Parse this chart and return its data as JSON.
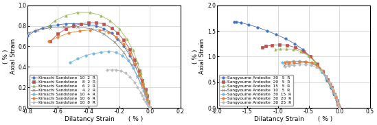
{
  "left": {
    "series": [
      {
        "label": "Kimachi Sandstone  10  2  R",
        "color": "#4472C4",
        "marker": "o",
        "ms": 2.5,
        "dilatancy": [
          0.0,
          -0.01,
          -0.02,
          -0.03,
          -0.05,
          -0.07,
          -0.1,
          -0.13,
          -0.17,
          -0.21,
          -0.25,
          -0.3,
          -0.35,
          -0.4,
          -0.45,
          -0.5,
          -0.55,
          -0.6,
          -0.65,
          -0.7,
          -0.75,
          -0.8,
          -0.84
        ],
        "axial": [
          0.0,
          0.05,
          0.1,
          0.16,
          0.24,
          0.32,
          0.42,
          0.51,
          0.6,
          0.67,
          0.73,
          0.77,
          0.8,
          0.81,
          0.82,
          0.82,
          0.82,
          0.81,
          0.8,
          0.78,
          0.75,
          0.7,
          0.63
        ]
      },
      {
        "label": "Kimachi Sandstone    8  2  R",
        "color": "#C0504D",
        "marker": "s",
        "ms": 2.5,
        "dilatancy": [
          0.0,
          -0.01,
          -0.02,
          -0.03,
          -0.05,
          -0.07,
          -0.1,
          -0.13,
          -0.17,
          -0.21,
          -0.25,
          -0.3,
          -0.35,
          -0.4,
          -0.45,
          -0.5,
          -0.55,
          -0.6,
          -0.65
        ],
        "axial": [
          0.0,
          0.06,
          0.12,
          0.18,
          0.27,
          0.36,
          0.47,
          0.57,
          0.66,
          0.73,
          0.78,
          0.82,
          0.83,
          0.83,
          0.82,
          0.8,
          0.77,
          0.72,
          0.65
        ]
      },
      {
        "label": "Kimachi Sandstone    6  2  R",
        "color": "#9BBB59",
        "marker": "^",
        "ms": 2.5,
        "dilatancy": [
          0.0,
          -0.01,
          -0.02,
          -0.04,
          -0.06,
          -0.08,
          -0.11,
          -0.15,
          -0.2,
          -0.26,
          -0.32,
          -0.39,
          -0.47,
          -0.55,
          -0.62,
          -0.66
        ],
        "axial": [
          0.0,
          0.07,
          0.14,
          0.24,
          0.34,
          0.44,
          0.56,
          0.67,
          0.77,
          0.85,
          0.9,
          0.93,
          0.93,
          0.9,
          0.85,
          0.8
        ]
      },
      {
        "label": "Kimachi Sandstone    4  2  R",
        "color": "#808080",
        "marker": "x",
        "ms": 2.5,
        "dilatancy": [
          0.0,
          -0.01,
          -0.03,
          -0.05,
          -0.08,
          -0.12,
          -0.17,
          -0.23,
          -0.3,
          -0.38,
          -0.47,
          -0.56,
          -0.65,
          -0.73,
          -0.79
        ],
        "axial": [
          0.0,
          0.05,
          0.12,
          0.2,
          0.3,
          0.42,
          0.54,
          0.64,
          0.72,
          0.77,
          0.79,
          0.79,
          0.78,
          0.76,
          0.73
        ]
      },
      {
        "label": "Kimachi Sandstone  10  4  R",
        "color": "#74B9E0",
        "marker": "o",
        "ms": 2.5,
        "dilatancy": [
          0.0,
          -0.01,
          -0.02,
          -0.03,
          -0.04,
          -0.06,
          -0.08,
          -0.11,
          -0.14,
          -0.18,
          -0.22,
          -0.27,
          -0.32,
          -0.37,
          -0.42,
          -0.47,
          -0.52
        ],
        "axial": [
          0.0,
          0.03,
          0.07,
          0.12,
          0.17,
          0.24,
          0.31,
          0.39,
          0.46,
          0.51,
          0.54,
          0.55,
          0.54,
          0.53,
          0.51,
          0.48,
          0.44
        ]
      },
      {
        "label": "Kimachi Sandstone  10  6  R",
        "color": "#ED7D31",
        "marker": "o",
        "ms": 2.5,
        "dilatancy": [
          0.0,
          -0.01,
          -0.02,
          -0.03,
          -0.05,
          -0.07,
          -0.1,
          -0.13,
          -0.17,
          -0.22,
          -0.27,
          -0.33,
          -0.39,
          -0.46,
          -0.53,
          -0.6,
          -0.66
        ],
        "axial": [
          0.0,
          0.04,
          0.09,
          0.15,
          0.23,
          0.32,
          0.43,
          0.53,
          0.62,
          0.69,
          0.74,
          0.76,
          0.76,
          0.75,
          0.73,
          0.69,
          0.65
        ]
      },
      {
        "label": "Kimachi Sandstone  10  8  R",
        "color": "#BBBBBB",
        "marker": "D",
        "ms": 2.0,
        "dilatancy": [
          0.0,
          -0.01,
          -0.02,
          -0.03,
          -0.04,
          -0.05,
          -0.06,
          -0.08,
          -0.1,
          -0.13,
          -0.16,
          -0.19,
          -0.22,
          -0.25,
          -0.28
        ],
        "axial": [
          0.0,
          0.02,
          0.04,
          0.06,
          0.09,
          0.12,
          0.15,
          0.2,
          0.25,
          0.3,
          0.34,
          0.36,
          0.37,
          0.37,
          0.37
        ]
      }
    ],
    "xlim": [
      -0.8,
      0.2
    ],
    "ylim": [
      0.0,
      1.0
    ],
    "xticks": [
      -0.8,
      -0.6,
      -0.4,
      -0.2,
      0.0,
      0.2
    ],
    "yticks": [
      0.0,
      0.2,
      0.4,
      0.6,
      0.8,
      1.0
    ],
    "xlabel": "Dilatancy Strain",
    "xlabel2": "( % )",
    "ylabel": "Axial Strain",
    "ylabel2": "( % )"
  },
  "right": {
    "series": [
      {
        "label": "Sangyoume Andesite  30   5  R",
        "color": "#4472C4",
        "marker": "o",
        "ms": 2.5,
        "dilatancy": [
          0.0,
          -0.02,
          -0.05,
          -0.09,
          -0.14,
          -0.2,
          -0.28,
          -0.37,
          -0.48,
          -0.6,
          -0.73,
          -0.88,
          -1.03,
          -1.18,
          -1.33,
          -1.48,
          -1.6,
          -1.68,
          -1.72
        ],
        "axial": [
          0.0,
          0.07,
          0.16,
          0.27,
          0.39,
          0.54,
          0.7,
          0.86,
          1.01,
          1.14,
          1.25,
          1.35,
          1.43,
          1.5,
          1.57,
          1.62,
          1.66,
          1.68,
          1.68
        ]
      },
      {
        "label": "Sangyoume Andesite  20   5  R",
        "color": "#C0504D",
        "marker": "s",
        "ms": 2.5,
        "dilatancy": [
          0.0,
          -0.02,
          -0.04,
          -0.08,
          -0.13,
          -0.19,
          -0.27,
          -0.36,
          -0.47,
          -0.59,
          -0.72,
          -0.85,
          -0.98,
          -1.1,
          -1.2,
          -1.26
        ],
        "axial": [
          0.0,
          0.07,
          0.15,
          0.27,
          0.4,
          0.55,
          0.71,
          0.86,
          1.0,
          1.1,
          1.18,
          1.22,
          1.23,
          1.22,
          1.2,
          1.18
        ]
      },
      {
        "label": "Sangyoume Andesite  15   5  R",
        "color": "#9BBB59",
        "marker": "^",
        "ms": 2.5,
        "dilatancy": [
          0.0,
          -0.02,
          -0.05,
          -0.09,
          -0.15,
          -0.22,
          -0.3,
          -0.4,
          -0.51,
          -0.63,
          -0.75,
          -0.87,
          -0.97,
          -1.04
        ],
        "axial": [
          0.0,
          0.08,
          0.17,
          0.29,
          0.43,
          0.59,
          0.75,
          0.9,
          1.02,
          1.1,
          1.14,
          1.15,
          1.15,
          1.14
        ]
      },
      {
        "label": "Sangyoume Andesite  10   5  R",
        "color": "#808080",
        "marker": "x",
        "ms": 2.5,
        "dilatancy": [
          0.0,
          -0.01,
          -0.03,
          -0.06,
          -0.1,
          -0.15,
          -0.21,
          -0.28,
          -0.36,
          -0.45,
          -0.55,
          -0.65,
          -0.74,
          -0.83,
          -0.9
        ],
        "axial": [
          0.0,
          0.05,
          0.12,
          0.22,
          0.34,
          0.47,
          0.61,
          0.73,
          0.82,
          0.87,
          0.88,
          0.87,
          0.86,
          0.85,
          0.83
        ]
      },
      {
        "label": "Sangyoume Andesite  30  15  R",
        "color": "#74B9E0",
        "marker": "o",
        "ms": 2.5,
        "dilatancy": [
          0.0,
          -0.01,
          -0.03,
          -0.06,
          -0.1,
          -0.15,
          -0.21,
          -0.28,
          -0.36,
          -0.45,
          -0.55,
          -0.65,
          -0.75,
          -0.85,
          -0.93
        ],
        "axial": [
          0.0,
          0.05,
          0.11,
          0.2,
          0.31,
          0.44,
          0.57,
          0.7,
          0.8,
          0.87,
          0.9,
          0.91,
          0.91,
          0.9,
          0.89
        ]
      },
      {
        "label": "Sangyoume Andesite  30  20  R",
        "color": "#ED7D31",
        "marker": "o",
        "ms": 2.5,
        "dilatancy": [
          0.0,
          -0.01,
          -0.03,
          -0.06,
          -0.1,
          -0.15,
          -0.21,
          -0.28,
          -0.36,
          -0.45,
          -0.55,
          -0.65,
          -0.74,
          -0.82,
          -0.89
        ],
        "axial": [
          0.0,
          0.05,
          0.12,
          0.22,
          0.34,
          0.47,
          0.61,
          0.73,
          0.82,
          0.88,
          0.9,
          0.9,
          0.9,
          0.89,
          0.88
        ]
      },
      {
        "label": "Sangyoume Andesite  30  25  R",
        "color": "#BBBBBB",
        "marker": "D",
        "ms": 2.0,
        "dilatancy": [
          0.0,
          -0.01,
          -0.02,
          -0.04,
          -0.07,
          -0.11,
          -0.16,
          -0.22,
          -0.29,
          -0.37,
          -0.46,
          -0.55,
          -0.65,
          -0.74,
          -0.82,
          -0.89
        ],
        "axial": [
          0.0,
          0.04,
          0.09,
          0.16,
          0.26,
          0.37,
          0.5,
          0.62,
          0.72,
          0.79,
          0.83,
          0.84,
          0.84,
          0.83,
          0.82,
          0.81
        ]
      }
    ],
    "xlim": [
      -2.0,
      0.5
    ],
    "ylim": [
      0.0,
      2.0
    ],
    "xticks": [
      -2.0,
      -1.5,
      -1.0,
      -0.5,
      0.0,
      0.5
    ],
    "yticks": [
      0.0,
      0.5,
      1.0,
      1.5,
      2.0
    ],
    "xlabel": "Dilatancy Strain",
    "xlabel2": "( % )",
    "ylabel": "Axial Strain",
    "ylabel2": "( % )"
  },
  "bg_color": "#FFFFFF",
  "grid_color": "#CCCCCC",
  "tick_fontsize": 5.5,
  "label_fontsize": 6.5,
  "legend_fontsize": 4.2,
  "linewidth": 0.6
}
